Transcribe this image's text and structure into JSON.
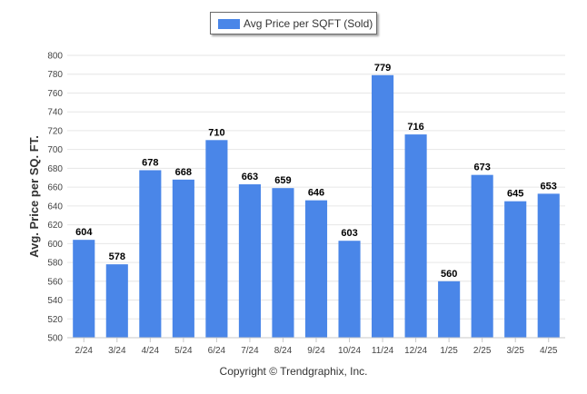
{
  "chart_data": {
    "type": "bar",
    "categories": [
      "2/24",
      "3/24",
      "4/24",
      "5/24",
      "6/24",
      "7/24",
      "8/24",
      "9/24",
      "10/24",
      "11/24",
      "12/24",
      "1/25",
      "2/25",
      "3/25",
      "4/25"
    ],
    "series": [
      {
        "name": "Avg Price per SQFT (Sold)",
        "values": [
          604,
          578,
          678,
          668,
          710,
          663,
          659,
          646,
          603,
          779,
          716,
          560,
          673,
          645,
          653
        ]
      }
    ],
    "ylabel": "Avg. Price per SQ. FT.",
    "xlabel": "",
    "ylim": [
      500,
      800
    ],
    "yticks": [
      500,
      520,
      540,
      560,
      580,
      600,
      620,
      640,
      660,
      680,
      700,
      720,
      740,
      760,
      780,
      800
    ],
    "grid": true,
    "legend_position": "top-center",
    "bar_color": "#4a86e8",
    "data_labels": true
  },
  "legend": {
    "label": "Avg Price per SQFT (Sold)",
    "color": "#4a86e8"
  },
  "footer": {
    "copyright": "Copyright © Trendgraphix, Inc."
  }
}
